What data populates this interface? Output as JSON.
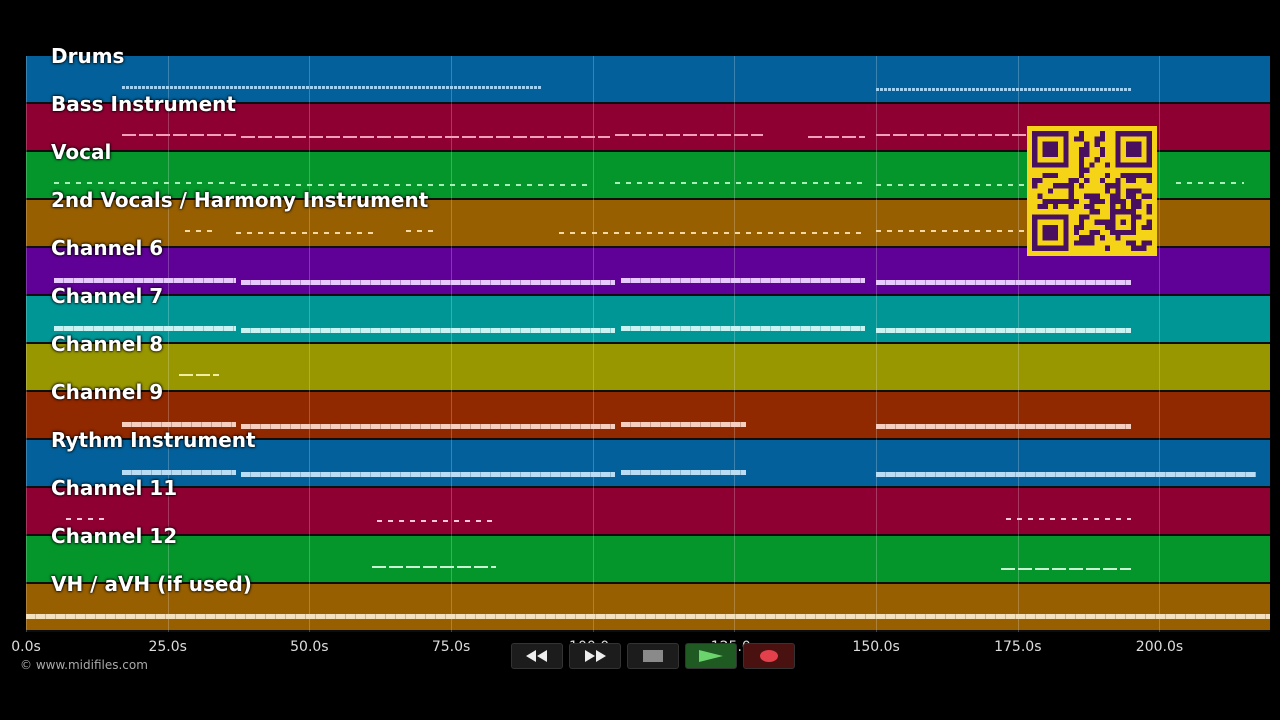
{
  "tracks": [
    {
      "label": "Drums",
      "color": "#03609a",
      "note_color": "#9fd2f2",
      "style": "dense",
      "segments": [
        [
          17,
          91
        ],
        [
          150,
          195
        ]
      ]
    },
    {
      "label": "Bass Instrument",
      "color": "#8e0032",
      "note_color": "#f2a0b9",
      "style": "line",
      "segments": [
        [
          17,
          37
        ],
        [
          38,
          103
        ],
        [
          104,
          130
        ],
        [
          138,
          148
        ],
        [
          150,
          195
        ]
      ]
    },
    {
      "label": "Vocal",
      "color": "#04952b",
      "note_color": "#a8f0b8",
      "style": "dash",
      "segments": [
        [
          5,
          37
        ],
        [
          38,
          100
        ],
        [
          104,
          148
        ],
        [
          150,
          195
        ],
        [
          203,
          215
        ]
      ]
    },
    {
      "label": "2nd Vocals / Harmony Instrument",
      "color": "#975f00",
      "note_color": "#f3d9a5",
      "style": "dash",
      "segments": [
        [
          28,
          33
        ],
        [
          37,
          62
        ],
        [
          67,
          72
        ],
        [
          94,
          148
        ],
        [
          150,
          180
        ]
      ]
    },
    {
      "label": "Channel 6",
      "color": "#5f0096",
      "note_color": "#e7c8ff",
      "style": "thick",
      "segments": [
        [
          5,
          37
        ],
        [
          38,
          104
        ],
        [
          105,
          148
        ],
        [
          150,
          195
        ]
      ]
    },
    {
      "label": "Channel 7",
      "color": "#009696",
      "note_color": "#c9f3f3",
      "style": "thick",
      "segments": [
        [
          5,
          37
        ],
        [
          38,
          104
        ],
        [
          105,
          148
        ],
        [
          150,
          195
        ]
      ]
    },
    {
      "label": "Channel 8",
      "color": "#989700",
      "note_color": "#efef9f",
      "style": "line",
      "segments": [
        [
          27,
          34
        ]
      ]
    },
    {
      "label": "Channel 9",
      "color": "#902800",
      "note_color": "#f7cfc0",
      "style": "thick",
      "segments": [
        [
          17,
          37
        ],
        [
          38,
          104
        ],
        [
          105,
          127
        ],
        [
          150,
          195
        ]
      ]
    },
    {
      "label": "Rythm Instrument",
      "color": "#03609a",
      "note_color": "#b9ddf5",
      "style": "thick",
      "segments": [
        [
          17,
          37
        ],
        [
          38,
          104
        ],
        [
          105,
          127
        ],
        [
          150,
          217
        ]
      ]
    },
    {
      "label": "Channel 11",
      "color": "#8e0032",
      "note_color": "#f6c9d7",
      "style": "dash",
      "segments": [
        [
          7,
          14
        ],
        [
          62,
          83
        ],
        [
          173,
          195
        ]
      ]
    },
    {
      "label": "Channel 12",
      "color": "#04952b",
      "note_color": "#c8f2d2",
      "style": "line",
      "segments": [
        [
          61,
          83
        ],
        [
          172,
          195
        ]
      ]
    },
    {
      "label": "VH / aVH (if used)",
      "color": "#975f00",
      "note_color": "#f4e1bd",
      "style": "thick",
      "segments": [
        [
          0,
          219.5
        ]
      ]
    }
  ],
  "time_axis": {
    "min": 0,
    "max": 219.5,
    "ticks": [
      {
        "value": 0,
        "label": "0.0s"
      },
      {
        "value": 25,
        "label": "25.0s"
      },
      {
        "value": 50,
        "label": "50.0s"
      },
      {
        "value": 75,
        "label": "75.0s"
      },
      {
        "value": 100,
        "label": "100.0s"
      },
      {
        "value": 125,
        "label": "125.0s"
      },
      {
        "value": 150,
        "label": "150.0s"
      },
      {
        "value": 175,
        "label": "175.0s"
      },
      {
        "value": 200,
        "label": "200.0s"
      }
    ]
  },
  "transport": [
    {
      "name": "rewind-button",
      "icon": "rewind-icon"
    },
    {
      "name": "fast-forward-button",
      "icon": "fast-forward-icon"
    },
    {
      "name": "stop-button",
      "icon": "stop-icon"
    },
    {
      "name": "play-button",
      "icon": "play-icon"
    },
    {
      "name": "record-button",
      "icon": "record-icon"
    }
  ],
  "copyright": "© www.midifiles.com",
  "qr_colors": {
    "background": "#f5d418",
    "module": "#4a1060"
  }
}
